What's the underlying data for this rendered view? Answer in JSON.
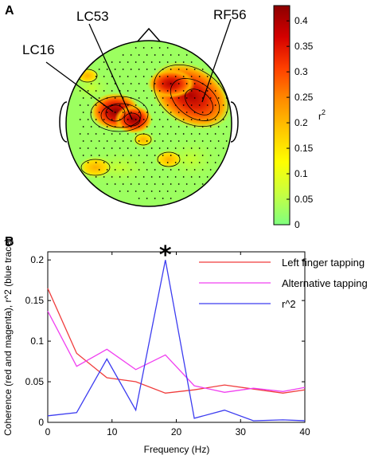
{
  "panels": {
    "a_label": "A",
    "b_label": "B"
  },
  "topomap": {
    "callouts": [
      "LC16",
      "LC53",
      "RF56"
    ],
    "colorbar": {
      "label": "r",
      "label_superscript": "2",
      "ticks": [
        "0",
        "0.05",
        "0.1",
        "0.15",
        "0.2",
        "0.25",
        "0.3",
        "0.35",
        "0.4"
      ],
      "tick_values": [
        0,
        0.05,
        0.1,
        0.15,
        0.2,
        0.25,
        0.3,
        0.35,
        0.4
      ],
      "range": [
        0,
        0.43
      ],
      "colors": [
        "#7fff7f",
        "#c8ff40",
        "#ffff00",
        "#ffc800",
        "#ff8c00",
        "#ff4000",
        "#d40000",
        "#8c0000"
      ]
    }
  },
  "chart_data": {
    "type": "line",
    "xlabel": "Frequency (Hz)",
    "ylabel": "Coherence (red and magenta), r^2 (blue trace)",
    "xlim": [
      0,
      40
    ],
    "ylim": [
      0,
      0.21
    ],
    "x_ticks": [
      "0",
      "10",
      "20",
      "30",
      "40"
    ],
    "x_tick_values": [
      0,
      10,
      20,
      30,
      40
    ],
    "y_ticks": [
      "0",
      "0.05",
      "0.1",
      "0.15",
      "0.2"
    ],
    "y_tick_values": [
      0,
      0.05,
      0.1,
      0.15,
      0.2
    ],
    "annotation": "*",
    "annotation_x": 18.3,
    "annotation_y": 0.2,
    "legend_position": "top-right",
    "series": [
      {
        "name": "Left finger tapping",
        "color": "#f03c3c",
        "x": [
          0,
          4.5,
          9.2,
          13.7,
          18.3,
          22.8,
          27.5,
          32,
          36.6,
          40
        ],
        "y": [
          0.165,
          0.085,
          0.055,
          0.05,
          0.036,
          0.04,
          0.046,
          0.041,
          0.036,
          0.04
        ]
      },
      {
        "name": "Alternative tapping",
        "color": "#f040f0",
        "x": [
          0,
          4.5,
          9.2,
          13.7,
          18.3,
          22.8,
          27.5,
          32,
          36.6,
          40
        ],
        "y": [
          0.137,
          0.069,
          0.09,
          0.065,
          0.083,
          0.045,
          0.037,
          0.042,
          0.038,
          0.043
        ]
      },
      {
        "name": "r^2",
        "color": "#3c3cf0",
        "x": [
          0,
          4.5,
          9.2,
          13.7,
          18.3,
          22.8,
          27.5,
          32,
          36.6,
          40
        ],
        "y": [
          0.008,
          0.012,
          0.078,
          0.015,
          0.2,
          0.005,
          0.015,
          0.002,
          0.003,
          0.002
        ]
      }
    ]
  }
}
